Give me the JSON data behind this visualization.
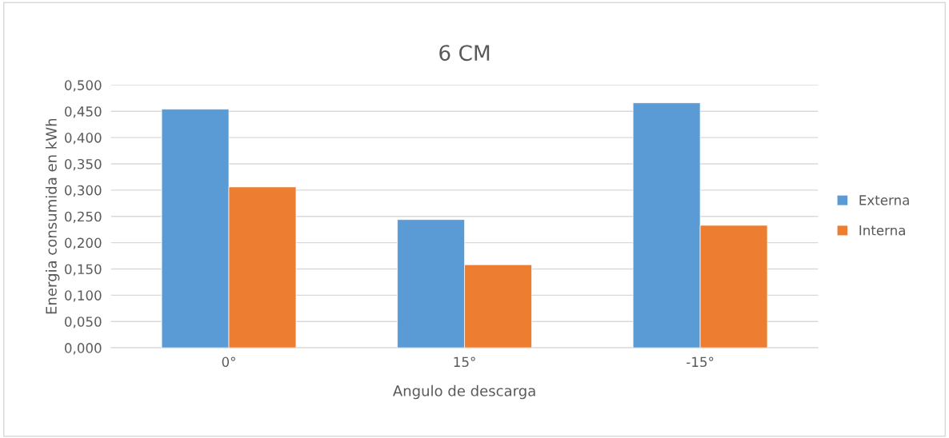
{
  "chart_data": {
    "type": "bar",
    "title": "6 CM",
    "xlabel": "Angulo de descarga",
    "ylabel": "Energia consumida en kWh",
    "categories": [
      "0°",
      "15°",
      "-15°"
    ],
    "series": [
      {
        "name": "Externa",
        "color": "#5b9bd5",
        "values": [
          0.454,
          0.244,
          0.466
        ]
      },
      {
        "name": "Interna",
        "color": "#ed7d31",
        "values": [
          0.306,
          0.158,
          0.233
        ]
      }
    ],
    "ylim": [
      0,
      0.5
    ],
    "yticks": [
      {
        "value": 0,
        "label": "0,000"
      },
      {
        "value": 0.05,
        "label": "0,050"
      },
      {
        "value": 0.1,
        "label": "0,100"
      },
      {
        "value": 0.15,
        "label": "0,150"
      },
      {
        "value": 0.2,
        "label": "0,200"
      },
      {
        "value": 0.25,
        "label": "0,250"
      },
      {
        "value": 0.3,
        "label": "0,300"
      },
      {
        "value": 0.35,
        "label": "0,350"
      },
      {
        "value": 0.4,
        "label": "0,400"
      },
      {
        "value": 0.45,
        "label": "0,450"
      },
      {
        "value": 0.5,
        "label": "0,500"
      }
    ],
    "grid": "y",
    "legend": "right"
  }
}
